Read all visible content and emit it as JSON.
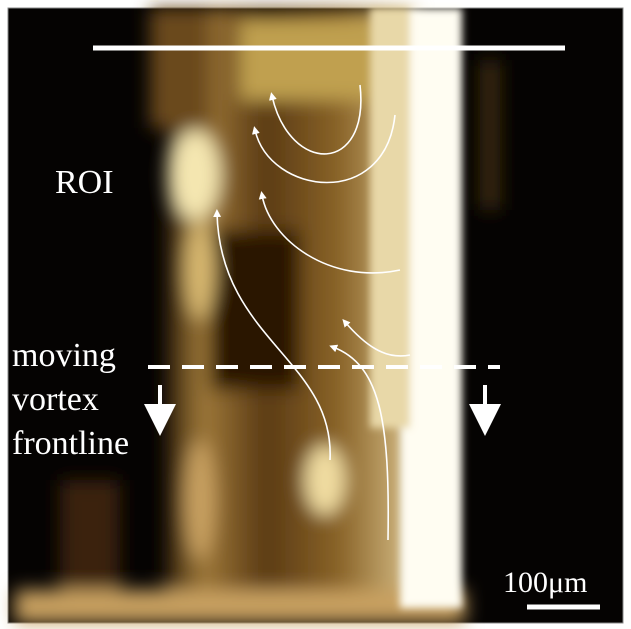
{
  "annotations": {
    "roi": "ROI",
    "frontline_label": [
      "moving",
      "vortex",
      "frontline"
    ],
    "scale_bar": "100μm"
  }
}
